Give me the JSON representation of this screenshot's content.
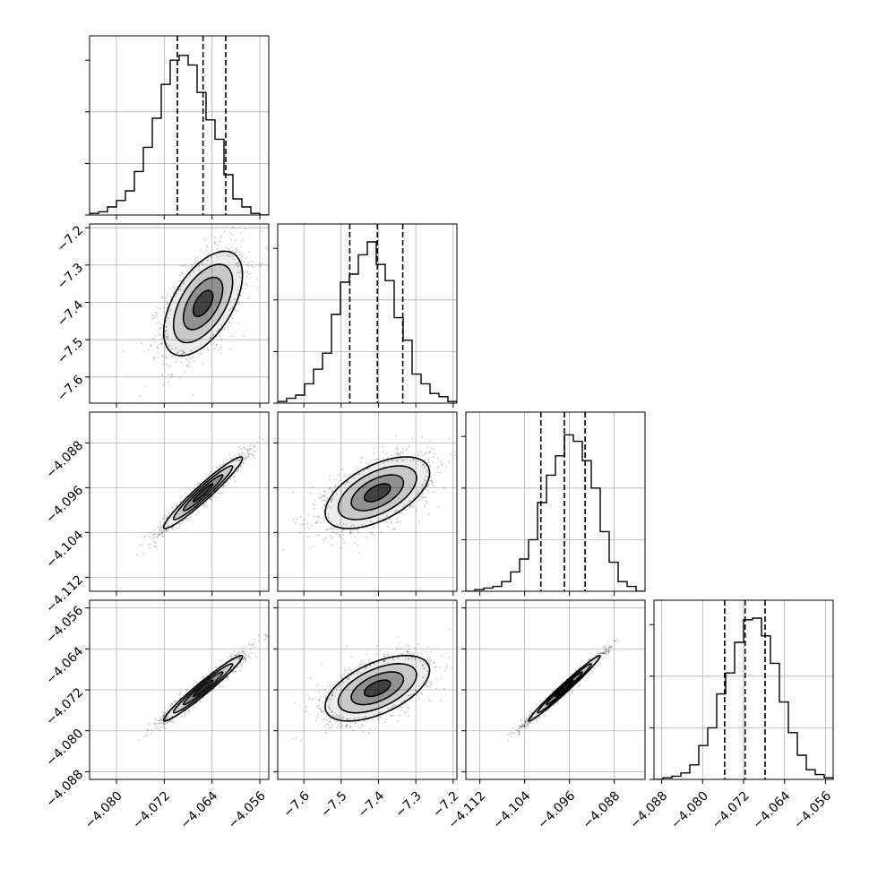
{
  "chart_data": {
    "type": "corner",
    "title": "",
    "parameters": [
      {
        "name": "",
        "range": [
          -4.0845,
          -4.0545
        ],
        "ticks": [
          -4.08,
          -4.072,
          -4.064,
          -4.056
        ],
        "quantiles": [
          -4.0698,
          -4.0655,
          -4.0617
        ]
      },
      {
        "name": "",
        "range": [
          -7.67,
          -7.19
        ],
        "ticks": [
          -7.6,
          -7.5,
          -7.4,
          -7.3,
          -7.2
        ],
        "quantiles": [
          -7.477,
          -7.403,
          -7.335
        ]
      },
      {
        "name": "",
        "range": [
          -4.1145,
          -4.0825
        ],
        "ticks": [
          -4.112,
          -4.104,
          -4.096,
          -4.088
        ],
        "quantiles": [
          -4.1011,
          -4.0969,
          -4.0932
        ]
      },
      {
        "name": "",
        "range": [
          -4.0895,
          -4.0545
        ],
        "ticks": [
          -4.088,
          -4.08,
          -4.072,
          -4.064,
          -4.056
        ],
        "quantiles": [
          -4.0757,
          -4.0717,
          -4.0678
        ]
      }
    ],
    "tick_labels": {
      "p0": [
        "−4.080",
        "−4.072",
        "−4.064",
        "−4.056"
      ],
      "p1": [
        "−7.6",
        "−7.5",
        "−7.4",
        "−7.3",
        "−7.2"
      ],
      "p2": [
        "−4.112",
        "−4.104",
        "−4.096",
        "−4.088"
      ],
      "p3": [
        "−4.088",
        "−4.080",
        "−4.072",
        "−4.064",
        "−4.056"
      ]
    },
    "histograms": [
      {
        "param": 0,
        "bin_counts": [
          0.01,
          0.02,
          0.05,
          0.09,
          0.15,
          0.27,
          0.42,
          0.6,
          0.81,
          0.96,
          0.99,
          0.93,
          0.76,
          0.59,
          0.47,
          0.25,
          0.1,
          0.05,
          0.01,
          0.0
        ]
      },
      {
        "param": 1,
        "bin_counts": [
          0.01,
          0.03,
          0.05,
          0.12,
          0.21,
          0.31,
          0.55,
          0.75,
          0.8,
          0.92,
          1.0,
          0.86,
          0.76,
          0.53,
          0.39,
          0.18,
          0.12,
          0.06,
          0.04,
          0.01
        ]
      },
      {
        "param": 2,
        "bin_counts": [
          0.0,
          0.01,
          0.02,
          0.03,
          0.06,
          0.12,
          0.2,
          0.32,
          0.55,
          0.72,
          0.84,
          0.97,
          0.93,
          0.81,
          0.64,
          0.37,
          0.18,
          0.06,
          0.03,
          0.0
        ]
      },
      {
        "param": 3,
        "bin_counts": [
          0.0,
          0.01,
          0.02,
          0.04,
          0.09,
          0.21,
          0.32,
          0.53,
          0.66,
          0.85,
          0.99,
          1.0,
          0.89,
          0.72,
          0.48,
          0.29,
          0.15,
          0.06,
          0.03,
          0.01
        ]
      }
    ],
    "pairs": [
      {
        "row": 1,
        "col": 0,
        "mean": [
          -4.0655,
          -7.403
        ],
        "std": [
          0.0033,
          0.07
        ],
        "corr": 0.55
      },
      {
        "row": 2,
        "col": 0,
        "mean": [
          -4.0655,
          -4.0969
        ],
        "std": [
          0.0033,
          0.0032
        ],
        "corr": 0.96
      },
      {
        "row": 2,
        "col": 1,
        "mean": [
          -7.403,
          -4.0969
        ],
        "std": [
          0.07,
          0.0032
        ],
        "corr": 0.55
      },
      {
        "row": 3,
        "col": 0,
        "mean": [
          -4.0655,
          -4.0717
        ],
        "std": [
          0.0033,
          0.0032
        ],
        "corr": 0.97
      },
      {
        "row": 3,
        "col": 1,
        "mean": [
          -7.403,
          -4.0717
        ],
        "std": [
          0.07,
          0.0032
        ],
        "corr": 0.55
      },
      {
        "row": 3,
        "col": 2,
        "mean": [
          -4.0969,
          -4.0717
        ],
        "std": [
          0.0032,
          0.0032
        ],
        "corr": 0.985
      }
    ],
    "contour_levels_sigma": [
      0.5,
      1.0,
      1.5,
      2.0
    ],
    "grid": true,
    "colors": {
      "line": "#000000",
      "grid": "#b0b0b0",
      "scatter": "#000000",
      "density": "#000000"
    }
  }
}
